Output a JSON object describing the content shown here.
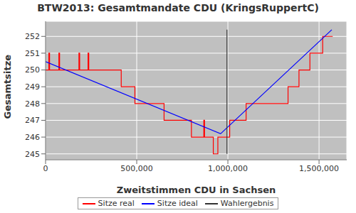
{
  "chart_data": {
    "type": "line",
    "title": "BTW2013: Gesamtmandate CDU (KringsRuppertC)",
    "x_label": "Zweitstimmen CDU in Sachsen",
    "y_label": "Gesamtsitze",
    "xlim": [
      0,
      1652000
    ],
    "xticks": [
      0,
      {
        "value": 500000,
        "label": "500,000"
      },
      {
        "value": 1000000,
        "label": "1,000,000"
      },
      {
        "value": 1500000,
        "label": "1,500,000"
      }
    ],
    "ylim": [
      244.65,
      252.9
    ],
    "yticks": [
      245,
      246,
      247,
      248,
      249,
      250,
      251,
      252
    ],
    "grid": true,
    "legend": "bottom",
    "series": [
      {
        "name": "Sitze real",
        "color": "#ff0000",
        "line_style": "step",
        "x": [
          0,
          18000,
          22000,
          73000,
          77000,
          183000,
          187000,
          233000,
          237000,
          415000,
          490000,
          650000,
          800000,
          868000,
          872000,
          920000,
          945000,
          1010000,
          1100000,
          1330000,
          1390000,
          1450000,
          1520000,
          1575000
        ],
        "values": [
          250,
          251,
          250,
          251,
          250,
          251,
          250,
          251,
          250,
          249,
          248,
          247,
          246,
          247,
          246,
          245,
          246,
          247,
          248,
          249,
          250,
          251,
          252,
          252
        ]
      },
      {
        "name": "Sitze ideal",
        "color": "#0000ff",
        "line_style": "solid",
        "x": [
          0,
          960000,
          1570000
        ],
        "values": [
          250.5,
          246.2,
          252.4
        ]
      },
      {
        "name": "Wahlergebnis",
        "color": "#333333",
        "line_style": "solid",
        "x": [
          995000,
          995000
        ],
        "values": [
          245,
          252.4
        ]
      }
    ]
  }
}
